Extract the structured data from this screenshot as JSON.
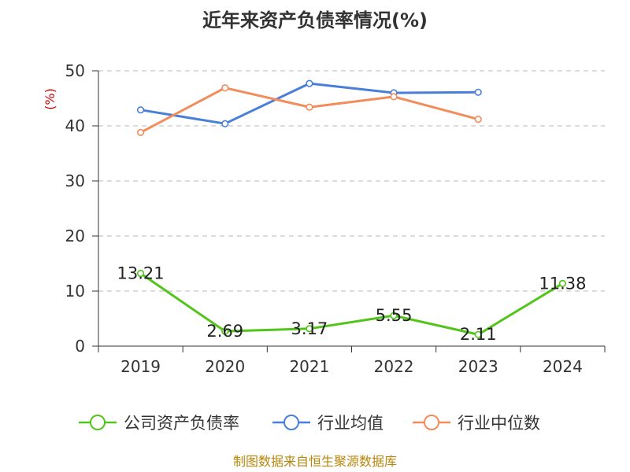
{
  "title": "近年来资产负债率情况(%)",
  "source": "制图数据来自恒生聚源数据库",
  "chart_data": {
    "type": "line",
    "title": "近年来资产负债率情况(%)",
    "ylabel": "(%)",
    "xlabel": "",
    "categories": [
      "2019",
      "2020",
      "2021",
      "2022",
      "2023",
      "2024"
    ],
    "ylim": [
      0,
      50
    ],
    "yticks": [
      0,
      10,
      20,
      30,
      40,
      50
    ],
    "grid": true,
    "legend_position": "bottom",
    "series": [
      {
        "name": "公司资产负债率",
        "color": "#52c41a",
        "values": [
          13.21,
          2.69,
          3.17,
          5.55,
          2.11,
          11.38
        ],
        "labels": [
          "13.21",
          "2.69",
          "3.17",
          "5.55",
          "2.11",
          "11.38"
        ]
      },
      {
        "name": "行业均值",
        "color": "#4a7fd9",
        "values": [
          42.9,
          40.4,
          47.7,
          46.0,
          46.1,
          null
        ]
      },
      {
        "name": "行业中位数",
        "color": "#f28c5a",
        "values": [
          38.8,
          46.9,
          43.4,
          45.3,
          41.2,
          null
        ]
      }
    ]
  }
}
